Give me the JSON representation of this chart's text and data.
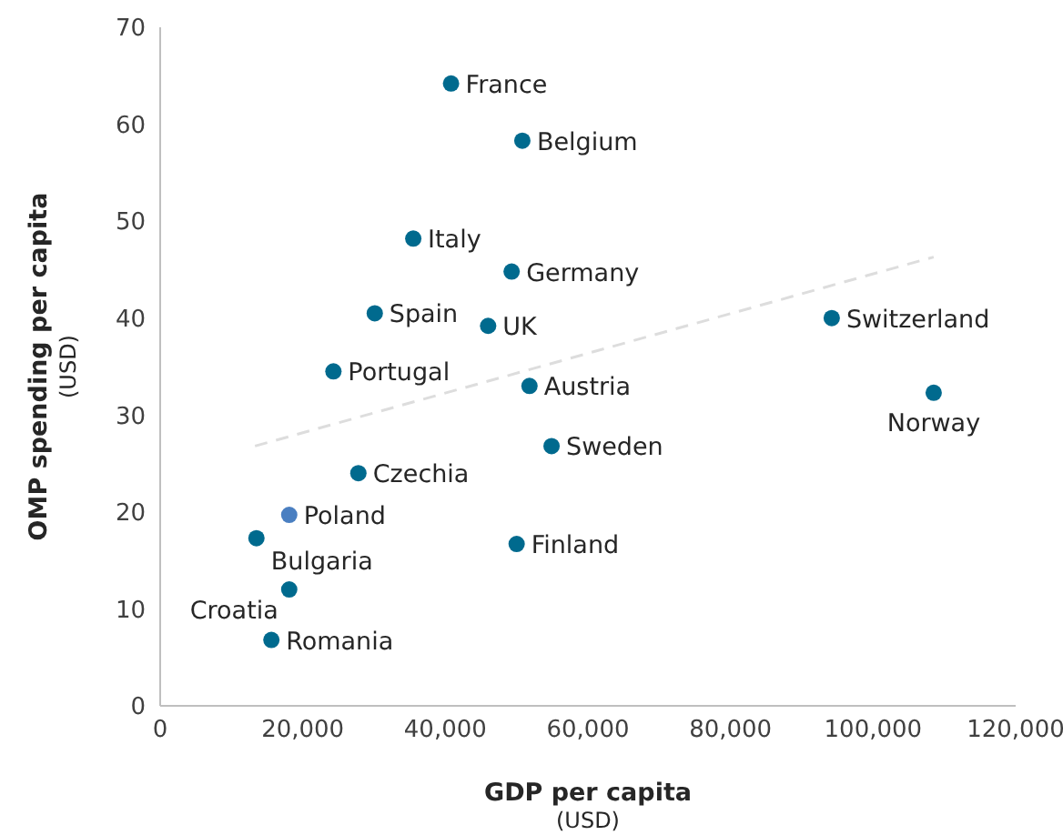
{
  "chart_data": {
    "type": "scatter",
    "xlabel": "GDP per capita\n(USD)",
    "ylabel": "OMP spending per capita\n(USD)",
    "xlim": [
      0,
      120000
    ],
    "xticks": [
      0,
      {
        "value": 20000,
        "label": "20,000"
      },
      {
        "value": 40000,
        "label": "40,000"
      },
      {
        "value": 60000,
        "label": "60,000"
      },
      {
        "value": 80000,
        "label": "80,000"
      },
      {
        "value": 100000,
        "label": "100,000"
      },
      {
        "value": 120000,
        "label": "120,000"
      }
    ],
    "ylim": [
      0,
      70
    ],
    "yticks": [
      0,
      10,
      20,
      30,
      40,
      50,
      60,
      70
    ],
    "marker": "circle",
    "series": [
      {
        "name": "France",
        "color": "#006a8e",
        "x": [
          40800
        ],
        "values": [
          64.2
        ]
      },
      {
        "name": "Belgium",
        "color": "#006a8e",
        "x": [
          50800
        ],
        "values": [
          58.3
        ]
      },
      {
        "name": "Italy",
        "color": "#006a8e",
        "x": [
          35500
        ],
        "values": [
          48.2
        ]
      },
      {
        "name": "Germany",
        "color": "#006a8e",
        "x": [
          49300
        ],
        "values": [
          44.8
        ]
      },
      {
        "name": "Spain",
        "color": "#006a8e",
        "x": [
          30100
        ],
        "values": [
          40.5
        ]
      },
      {
        "name": "UK",
        "color": "#006a8e",
        "x": [
          46000
        ],
        "values": [
          39.2
        ]
      },
      {
        "name": "Switzerland",
        "color": "#006a8e",
        "x": [
          94200
        ],
        "values": [
          40.0
        ]
      },
      {
        "name": "Norway",
        "color": "#006a8e",
        "x": [
          108500
        ],
        "values": [
          32.3
        ]
      },
      {
        "name": "Portugal",
        "color": "#006a8e",
        "x": [
          24300
        ],
        "values": [
          34.5
        ]
      },
      {
        "name": "Austria",
        "color": "#006a8e",
        "x": [
          51800
        ],
        "values": [
          33.0
        ]
      },
      {
        "name": "Sweden",
        "color": "#006a8e",
        "x": [
          54900
        ],
        "values": [
          26.8
        ]
      },
      {
        "name": "Czechia",
        "color": "#006a8e",
        "x": [
          27800
        ],
        "values": [
          24.0
        ]
      },
      {
        "name": "Poland",
        "color": "#4a7fc1",
        "x": [
          18100
        ],
        "values": [
          19.7
        ]
      },
      {
        "name": "Bulgaria",
        "color": "#006a8e",
        "x": [
          13500
        ],
        "values": [
          17.3
        ]
      },
      {
        "name": "Finland",
        "color": "#006a8e",
        "x": [
          50000
        ],
        "values": [
          16.7
        ]
      },
      {
        "name": "Croatia",
        "color": "#006a8e",
        "x": [
          18100
        ],
        "values": [
          12.0
        ]
      },
      {
        "name": "Romania",
        "color": "#006a8e",
        "x": [
          15600
        ],
        "values": [
          6.8
        ]
      },
      {
        "type": "line",
        "color": "#dddddd",
        "line_style": "dashed",
        "marker": "none",
        "x": [
          13300,
          108500
        ],
        "values": [
          26.8,
          46.3
        ]
      }
    ]
  }
}
